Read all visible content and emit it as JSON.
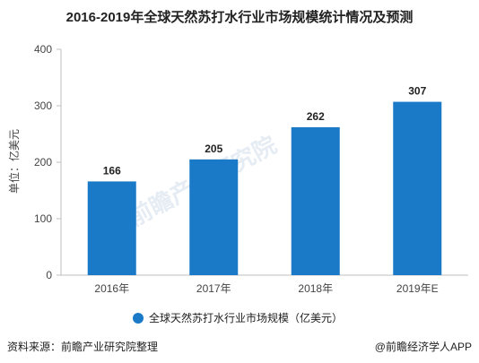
{
  "chart_data": {
    "type": "bar",
    "title": "2016-2019年全球天然苏打水行业市场规模统计情况及预测",
    "ylabel": "单位：亿美元",
    "xlabel": "",
    "categories": [
      "2016年",
      "2017年",
      "2018年",
      "2019年E"
    ],
    "series": [
      {
        "name": "全球天然苏打水行业市场规模（亿美元）",
        "values": [
          166,
          205,
          262,
          307
        ]
      }
    ],
    "ylim": [
      0,
      400
    ],
    "yticks": [
      0,
      100,
      200,
      300,
      400
    ],
    "grid": false,
    "legend_position": "bottom",
    "bar_color": "#1a7ac8"
  },
  "footer": {
    "source": "资料来源：前瞻产业研究院整理",
    "brand": "@前瞻经济学人APP"
  },
  "watermark": {
    "text": "前瞻产业研究院"
  }
}
